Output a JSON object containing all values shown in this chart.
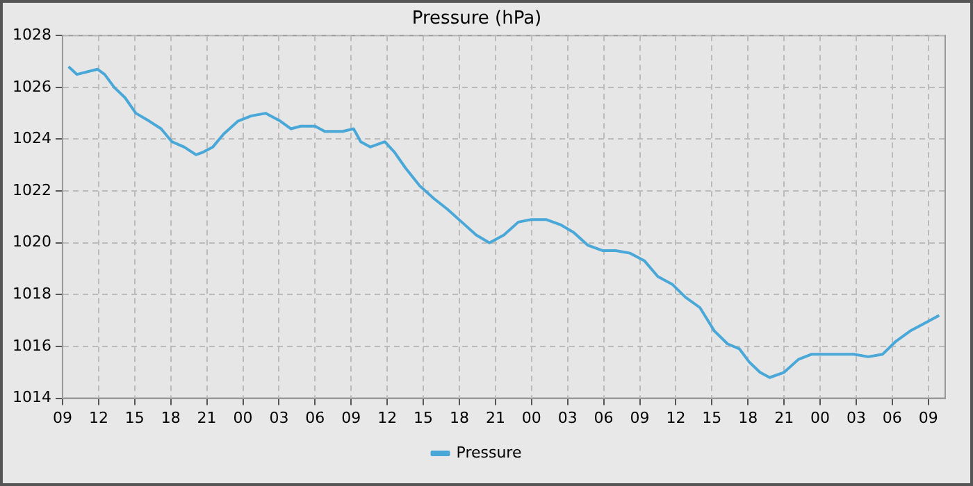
{
  "chart_data": {
    "type": "line",
    "title": "Pressure (hPa)",
    "x": [
      "--01-01T09:30",
      "--01-01T10:12",
      "--01-01T11:54",
      "--01-01T12:30",
      "--01-01T13:18",
      "--01-01T14:12",
      "--01-01T15:06",
      "--01-01T16:12",
      "--01-01T17:12",
      "--01-01T18:06",
      "--01-01T19:06",
      "--01-01T20:06",
      "--01-01T20:42",
      "--01-01T21:30",
      "--01-01T22:24",
      "--01-01T23:36",
      "--01-02T00:42",
      "--01-02T01:54",
      "--01-02T03:06",
      "--01-02T04:00",
      "--01-02T04:48",
      "--01-02T06:00",
      "--01-02T06:48",
      "--01-02T08:18",
      "--01-02T09:12",
      "--01-02T09:48",
      "--01-02T10:36",
      "--01-02T11:48",
      "--01-02T12:36",
      "--01-02T13:30",
      "--01-02T14:42",
      "--01-02T15:54",
      "--01-02T17:00",
      "--01-02T18:12",
      "--01-02T19:24",
      "--01-02T20:30",
      "--01-02T21:42",
      "--01-02T22:54",
      "--01-03T00:00",
      "--01-03T01:12",
      "--01-03T02:24",
      "--01-03T03:30",
      "--01-03T04:42",
      "--01-03T05:54",
      "--01-03T07:00",
      "--01-03T08:12",
      "--01-03T09:24",
      "--01-03T10:30",
      "--01-03T11:42",
      "--01-03T12:48",
      "--01-03T14:00",
      "--01-03T15:12",
      "--01-03T16:18",
      "--01-03T17:18",
      "--01-03T18:06",
      "--01-03T19:00",
      "--01-03T19:48",
      "--01-03T21:00",
      "--01-03T22:12",
      "--01-03T23:18",
      "--01-04T00:30",
      "--01-04T01:42",
      "--01-04T02:48",
      "--01-04T04:00",
      "--01-04T05:12",
      "--01-04T06:18",
      "--01-04T07:30",
      "--01-04T08:42",
      "--01-04T09:54"
    ],
    "series": [
      {
        "name": "Pressure",
        "color": "#4aa8d8",
        "values": [
          1026.8,
          1026.5,
          1026.7,
          1026.5,
          1026.0,
          1025.6,
          1025.0,
          1024.7,
          1024.4,
          1023.9,
          1023.7,
          1023.4,
          1023.5,
          1023.7,
          1024.2,
          1024.7,
          1024.9,
          1025.0,
          1024.7,
          1024.4,
          1024.5,
          1024.5,
          1024.3,
          1024.3,
          1024.4,
          1023.9,
          1023.7,
          1023.9,
          1023.5,
          1022.9,
          1022.2,
          1021.7,
          1021.3,
          1020.8,
          1020.3,
          1020.0,
          1020.3,
          1020.8,
          1020.9,
          1020.9,
          1020.7,
          1020.4,
          1019.9,
          1019.7,
          1019.7,
          1019.6,
          1019.3,
          1018.7,
          1018.4,
          1017.9,
          1017.5,
          1016.6,
          1016.1,
          1015.9,
          1015.4,
          1015.0,
          1014.8,
          1015.0,
          1015.5,
          1015.7,
          1015.7,
          1015.7,
          1015.7,
          1015.6,
          1015.7,
          1016.2,
          1016.6,
          1016.9,
          1017.2
        ]
      }
    ],
    "xlim": [
      "--01-01T09:00",
      "--01-04T10:24"
    ],
    "xticks": [
      {
        "value": "--01-01T09:00",
        "label": "09"
      },
      {
        "value": "--01-01T12:00",
        "label": "12"
      },
      {
        "value": "--01-01T15:00",
        "label": "15"
      },
      {
        "value": "--01-01T18:00",
        "label": "18"
      },
      {
        "value": "--01-01T21:00",
        "label": "21"
      },
      {
        "value": "--01-02T00:00",
        "label": "00"
      },
      {
        "value": "--01-02T03:00",
        "label": "03"
      },
      {
        "value": "--01-02T06:00",
        "label": "06"
      },
      {
        "value": "--01-02T09:00",
        "label": "09"
      },
      {
        "value": "--01-02T12:00",
        "label": "12"
      },
      {
        "value": "--01-02T15:00",
        "label": "15"
      },
      {
        "value": "--01-02T18:00",
        "label": "18"
      },
      {
        "value": "--01-02T21:00",
        "label": "21"
      },
      {
        "value": "--01-03T00:00",
        "label": "00"
      },
      {
        "value": "--01-03T03:00",
        "label": "03"
      },
      {
        "value": "--01-03T06:00",
        "label": "06"
      },
      {
        "value": "--01-03T09:00",
        "label": "09"
      },
      {
        "value": "--01-03T12:00",
        "label": "12"
      },
      {
        "value": "--01-03T15:00",
        "label": "15"
      },
      {
        "value": "--01-03T18:00",
        "label": "18"
      },
      {
        "value": "--01-03T21:00",
        "label": "21"
      },
      {
        "value": "--01-04T00:00",
        "label": "00"
      },
      {
        "value": "--01-04T03:00",
        "label": "03"
      },
      {
        "value": "--01-04T06:00",
        "label": "06"
      },
      {
        "value": "--01-04T09:00",
        "label": "09"
      }
    ],
    "ylim": [
      1014,
      1028
    ],
    "yticks": [
      1014,
      1016,
      1018,
      1020,
      1022,
      1024,
      1026,
      1028
    ],
    "grid": true,
    "legend": "bottom",
    "marker": "none",
    "line_style": "solid"
  }
}
